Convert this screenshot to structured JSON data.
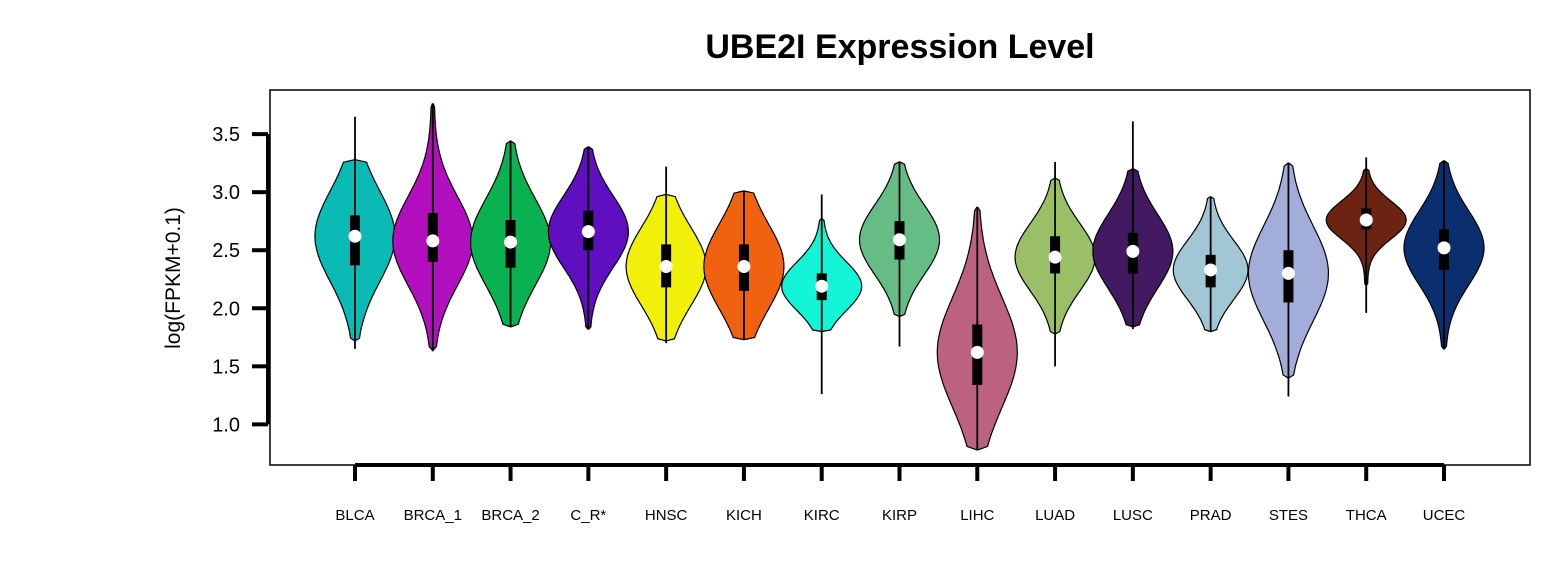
{
  "chart_data": {
    "type": "violin",
    "title": "UBE2I Expression Level",
    "ylabel": "log(FPKM+0.1)",
    "xlabel": "",
    "ylim": [
      0.65,
      3.88
    ],
    "yticks": [
      1.0,
      1.5,
      2.0,
      2.5,
      3.0,
      3.5
    ],
    "ytick_labels": [
      "1.0",
      "1.5",
      "2.0",
      "2.5",
      "3.0",
      "3.5"
    ],
    "grid": false,
    "legend": "none",
    "categories": [
      "BLCA",
      "BRCA_1",
      "BRCA_2",
      "C_R*",
      "HNSC",
      "KICH",
      "KIRC",
      "KIRP",
      "LIHC",
      "LUAD",
      "LUSC",
      "PRAD",
      "STES",
      "THCA",
      "UCEC"
    ],
    "series": [
      {
        "color": "#0ABAB5",
        "min": 1.65,
        "q1": 2.37,
        "median": 2.62,
        "q3": 2.8,
        "max": 3.65,
        "vmin": 1.72,
        "vmax": 3.28,
        "width": 0.6
      },
      {
        "color": "#B40FBE",
        "min": 1.63,
        "q1": 2.4,
        "median": 2.58,
        "q3": 2.82,
        "max": 3.76,
        "vmin": 1.64,
        "vmax": 3.76,
        "width": 0.6
      },
      {
        "color": "#0AB150",
        "min": 1.84,
        "q1": 2.35,
        "median": 2.57,
        "q3": 2.76,
        "max": 3.44,
        "vmin": 1.84,
        "vmax": 3.44,
        "width": 0.6
      },
      {
        "color": "#5F0FC0",
        "min": 1.82,
        "q1": 2.5,
        "median": 2.66,
        "q3": 2.84,
        "max": 3.39,
        "vmin": 1.82,
        "vmax": 3.39,
        "width": 0.6
      },
      {
        "color": "#F0F00A",
        "min": 1.7,
        "q1": 2.18,
        "median": 2.36,
        "q3": 2.55,
        "max": 3.22,
        "vmin": 1.72,
        "vmax": 2.98,
        "width": 0.6
      },
      {
        "color": "#F0620F",
        "min": 1.73,
        "q1": 2.15,
        "median": 2.36,
        "q3": 2.55,
        "max": 3.01,
        "vmin": 1.73,
        "vmax": 3.01,
        "width": 0.6
      },
      {
        "color": "#14F5D7",
        "min": 1.26,
        "q1": 2.07,
        "median": 2.19,
        "q3": 2.3,
        "max": 2.98,
        "vmin": 1.8,
        "vmax": 2.77,
        "width": 0.6
      },
      {
        "color": "#66BC85",
        "min": 1.67,
        "q1": 2.42,
        "median": 2.59,
        "q3": 2.75,
        "max": 3.26,
        "vmin": 1.93,
        "vmax": 3.26,
        "width": 0.6
      },
      {
        "color": "#BC6181",
        "min": 0.78,
        "q1": 1.34,
        "median": 1.62,
        "q3": 1.86,
        "max": 2.87,
        "vmin": 0.78,
        "vmax": 2.87,
        "width": 0.6
      },
      {
        "color": "#9ABF66",
        "min": 1.5,
        "q1": 2.3,
        "median": 2.44,
        "q3": 2.62,
        "max": 3.26,
        "vmin": 1.78,
        "vmax": 3.12,
        "width": 0.6
      },
      {
        "color": "#431A61",
        "min": 1.82,
        "q1": 2.3,
        "median": 2.49,
        "q3": 2.65,
        "max": 3.61,
        "vmin": 1.84,
        "vmax": 3.2,
        "width": 0.6
      },
      {
        "color": "#A1C6D4",
        "min": 1.8,
        "q1": 2.18,
        "median": 2.33,
        "q3": 2.46,
        "max": 2.96,
        "vmin": 1.8,
        "vmax": 2.96,
        "width": 0.56
      },
      {
        "color": "#A2ADD9",
        "min": 1.24,
        "q1": 2.05,
        "median": 2.3,
        "q3": 2.5,
        "max": 3.25,
        "vmin": 1.4,
        "vmax": 3.25,
        "width": 0.6
      },
      {
        "color": "#6C2311",
        "min": 1.96,
        "q1": 2.68,
        "median": 2.76,
        "q3": 2.86,
        "max": 3.3,
        "vmin": 2.2,
        "vmax": 3.2,
        "width": 0.6
      },
      {
        "color": "#0B2F6E",
        "min": 1.65,
        "q1": 2.33,
        "median": 2.52,
        "q3": 2.68,
        "max": 3.27,
        "vmin": 1.65,
        "vmax": 3.27,
        "width": 0.6
      }
    ]
  }
}
